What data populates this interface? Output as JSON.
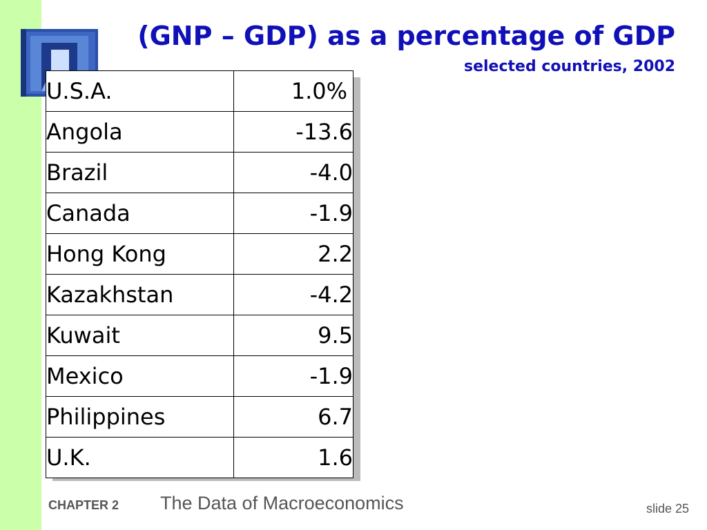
{
  "colors": {
    "title": "#1010b8",
    "side_strip": "#ccffaa",
    "footer_text": "#555555"
  },
  "title": "(GNP – GDP) as a percentage of GDP",
  "subtitle": "selected countries, 2002",
  "table": {
    "rows": [
      {
        "country": "U.S.A.",
        "value": "1.0%"
      },
      {
        "country": "Angola",
        "value": "-13.6"
      },
      {
        "country": "Brazil",
        "value": "-4.0"
      },
      {
        "country": "Canada",
        "value": "-1.9"
      },
      {
        "country": "Hong Kong",
        "value": "2.2"
      },
      {
        "country": "Kazakhstan",
        "value": "-4.2"
      },
      {
        "country": "Kuwait",
        "value": "9.5"
      },
      {
        "country": "Mexico",
        "value": "-1.9"
      },
      {
        "country": "Philippines",
        "value": "6.7"
      },
      {
        "country": "U.K.",
        "value": "1.6"
      }
    ]
  },
  "footer": {
    "chapter": "CHAPTER 2",
    "subject": "The Data of Macroeconomics",
    "slide": "slide 25"
  }
}
